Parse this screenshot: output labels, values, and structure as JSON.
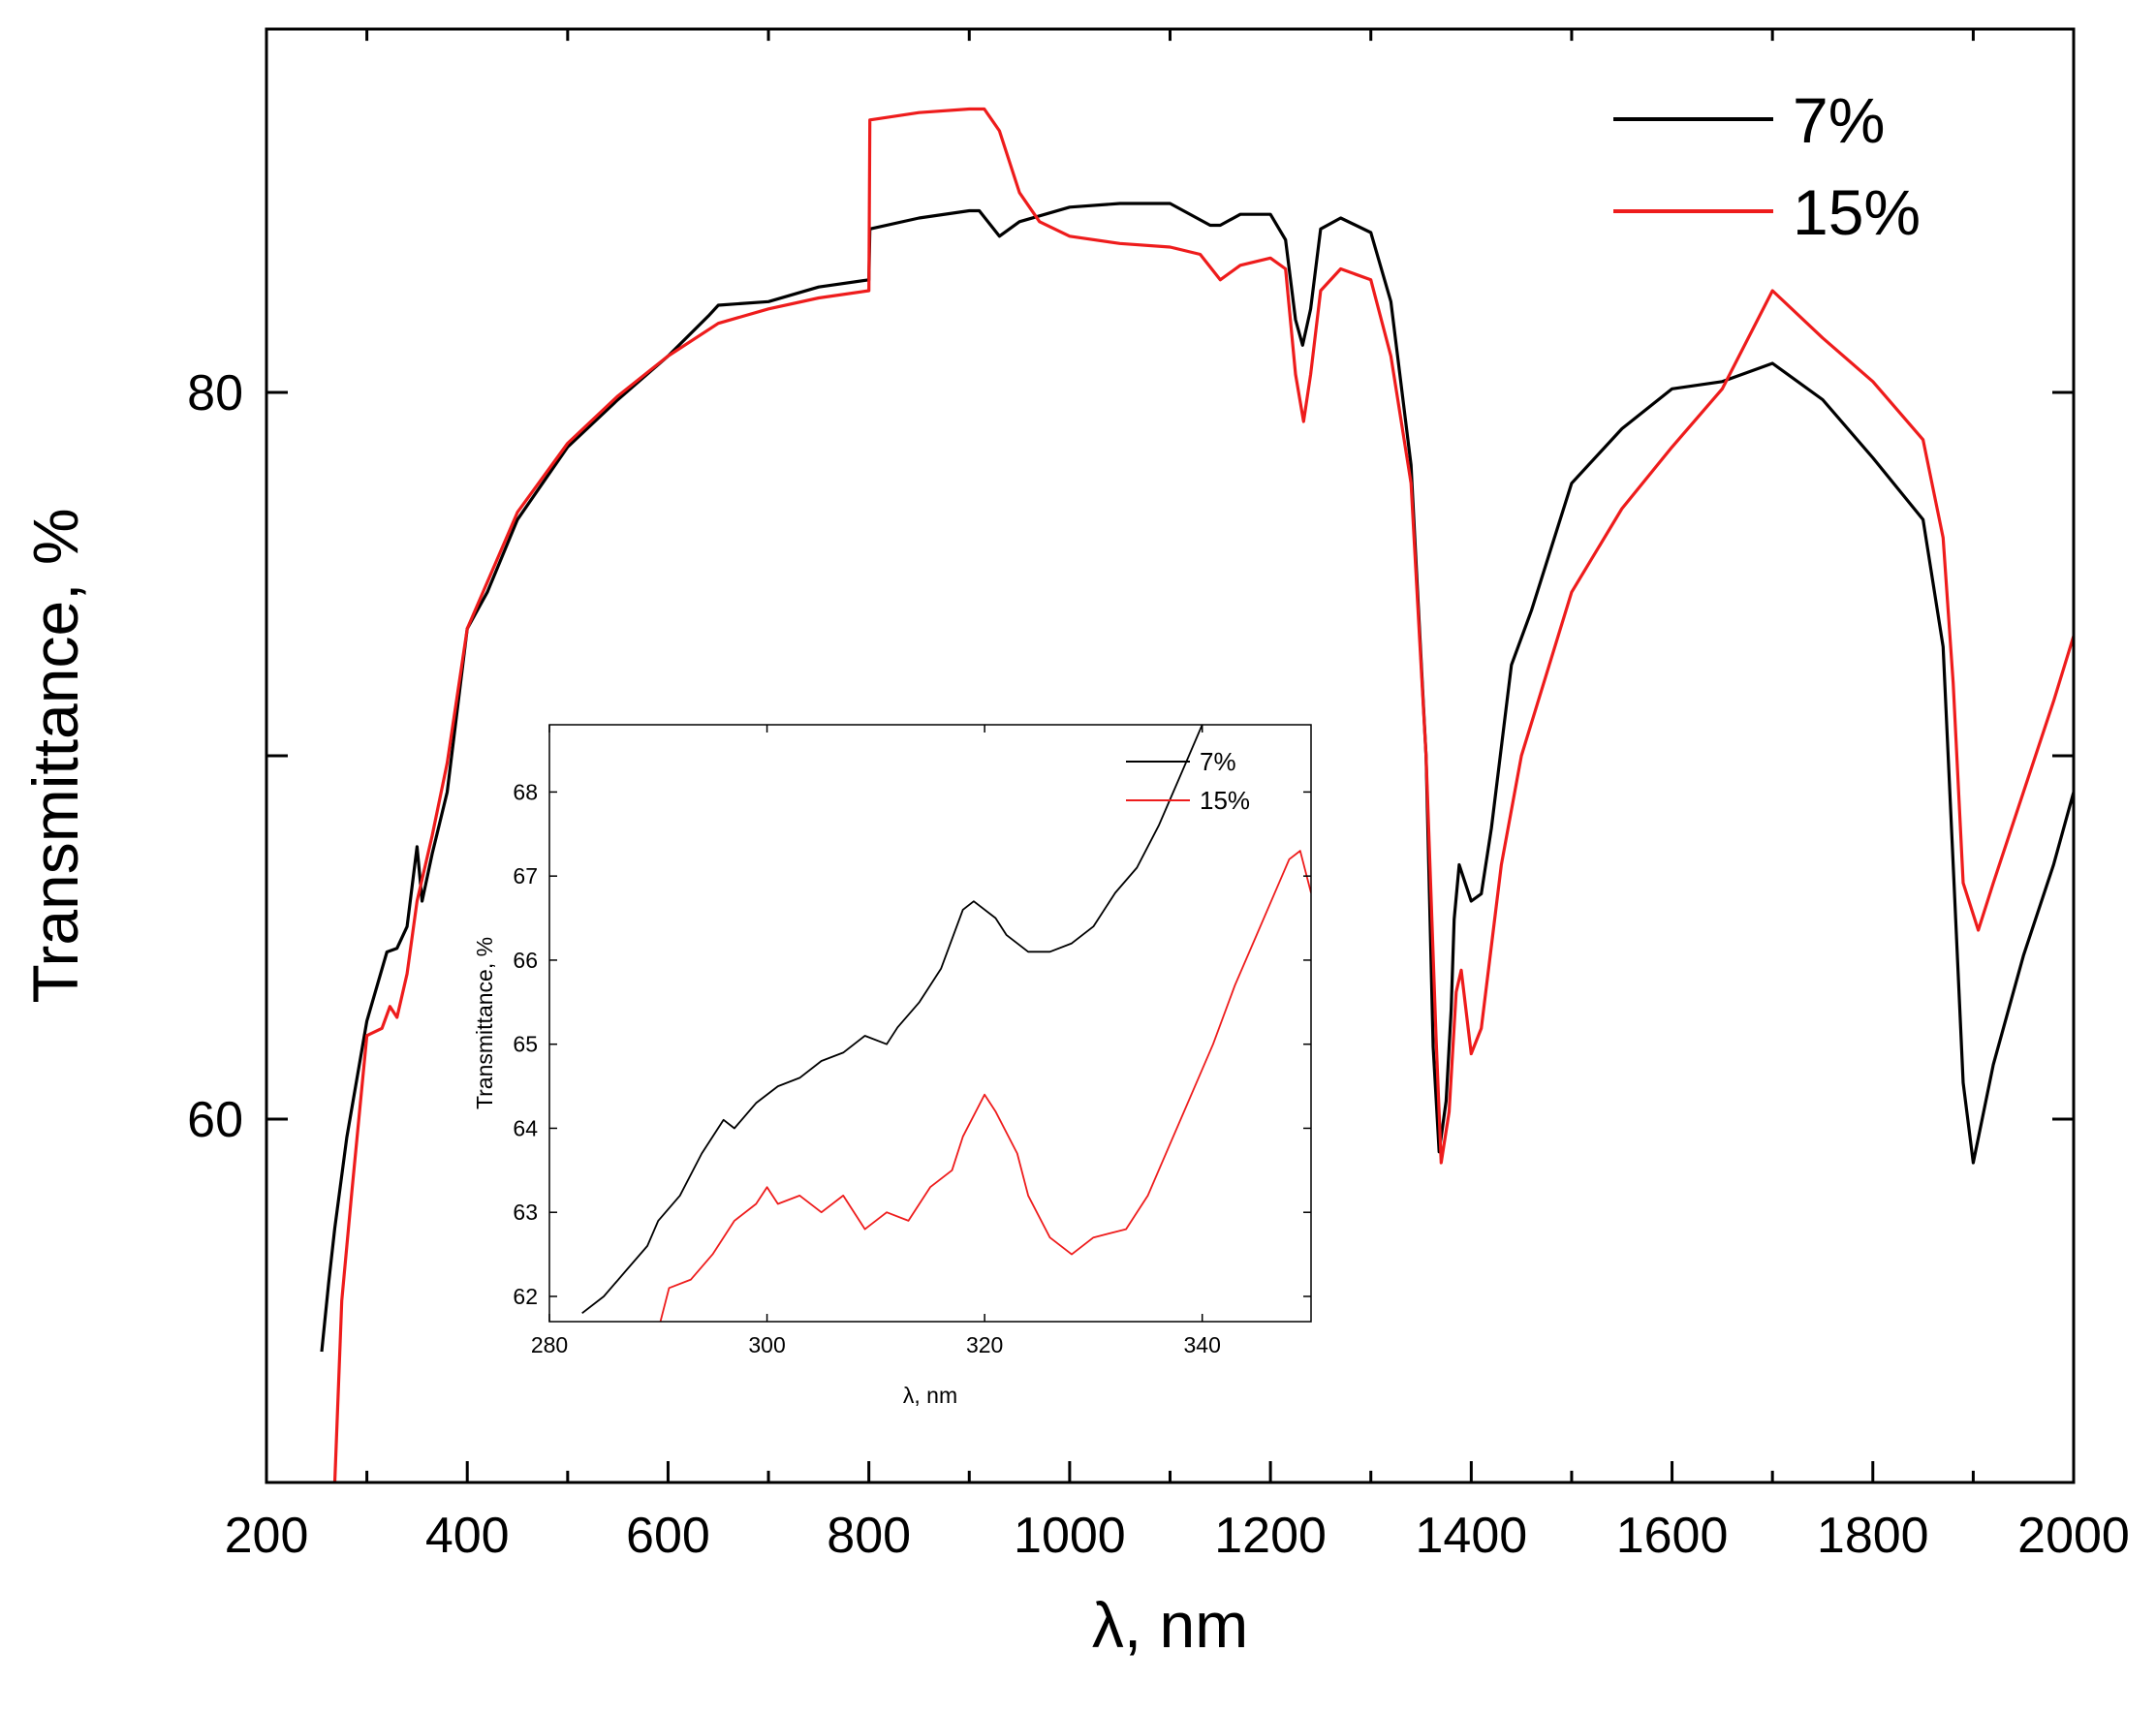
{
  "chart_data": [
    {
      "type": "line",
      "title": "",
      "xlabel": "λ, nm",
      "ylabel": "Transmittance, %",
      "xlim": [
        200,
        2000
      ],
      "ylim": [
        50,
        90
      ],
      "xticks": [
        200,
        400,
        600,
        800,
        1000,
        1200,
        1400,
        1600,
        1800,
        2000
      ],
      "yticks": [
        60,
        80
      ],
      "ytick_labels": [
        "60",
        "80"
      ],
      "legend_position": "top-right",
      "series": [
        {
          "name": "7%",
          "color": "#000000",
          "points": [
            [
              255,
              53.6
            ],
            [
              262,
              55.5
            ],
            [
              268,
              57
            ],
            [
              280,
              59.5
            ],
            [
              300,
              62.7
            ],
            [
              320,
              64.6
            ],
            [
              330,
              64.7
            ],
            [
              340,
              65.3
            ],
            [
              350,
              67.5
            ],
            [
              355,
              66
            ],
            [
              365,
              67.3
            ],
            [
              380,
              69
            ],
            [
              400,
              73.5
            ],
            [
              420,
              74.5
            ],
            [
              450,
              76.5
            ],
            [
              500,
              78.5
            ],
            [
              550,
              79.8
            ],
            [
              600,
              81
            ],
            [
              640,
              82.1
            ],
            [
              650,
              82.4
            ],
            [
              700,
              82.5
            ],
            [
              750,
              82.9
            ],
            [
              800,
              83.1
            ],
            [
              801,
              84.5
            ],
            [
              850,
              84.8
            ],
            [
              900,
              85
            ],
            [
              910,
              85
            ],
            [
              930,
              84.3
            ],
            [
              950,
              84.7
            ],
            [
              1000,
              85.1
            ],
            [
              1050,
              85.2
            ],
            [
              1100,
              85.2
            ],
            [
              1140,
              84.6
            ],
            [
              1150,
              84.6
            ],
            [
              1170,
              84.9
            ],
            [
              1200,
              84.9
            ],
            [
              1215,
              84.2
            ],
            [
              1225,
              82
            ],
            [
              1232,
              81.3
            ],
            [
              1240,
              82.3
            ],
            [
              1250,
              84.5
            ],
            [
              1270,
              84.8
            ],
            [
              1300,
              84.4
            ],
            [
              1320,
              82.5
            ],
            [
              1340,
              78
            ],
            [
              1355,
              70
            ],
            [
              1362,
              62
            ],
            [
              1368,
              59.1
            ],
            [
              1375,
              60.5
            ],
            [
              1380,
              63
            ],
            [
              1383,
              65.5
            ],
            [
              1388,
              67
            ],
            [
              1400,
              66
            ],
            [
              1410,
              66.2
            ],
            [
              1420,
              68
            ],
            [
              1440,
              72.5
            ],
            [
              1460,
              74
            ],
            [
              1500,
              77.5
            ],
            [
              1550,
              79
            ],
            [
              1600,
              80.1
            ],
            [
              1650,
              80.3
            ],
            [
              1700,
              80.8
            ],
            [
              1750,
              79.8
            ],
            [
              1800,
              78.2
            ],
            [
              1850,
              76.5
            ],
            [
              1870,
              73
            ],
            [
              1880,
              67
            ],
            [
              1890,
              61
            ],
            [
              1900,
              58.8
            ],
            [
              1920,
              61.5
            ],
            [
              1950,
              64.5
            ],
            [
              1980,
              67
            ],
            [
              2000,
              69
            ]
          ]
        },
        {
          "name": "15%",
          "color": "#ee1c1c",
          "points": [
            [
              268,
              50
            ],
            [
              275,
              55
            ],
            [
              285,
              58
            ],
            [
              300,
              62.3
            ],
            [
              315,
              62.5
            ],
            [
              323,
              63.1
            ],
            [
              330,
              62.8
            ],
            [
              340,
              64
            ],
            [
              350,
              66
            ],
            [
              365,
              67.8
            ],
            [
              380,
              69.8
            ],
            [
              400,
              73.5
            ],
            [
              450,
              76.7
            ],
            [
              500,
              78.6
            ],
            [
              550,
              79.9
            ],
            [
              600,
              81
            ],
            [
              650,
              81.9
            ],
            [
              700,
              82.3
            ],
            [
              750,
              82.6
            ],
            [
              800,
              82.8
            ],
            [
              801,
              87.5
            ],
            [
              850,
              87.7
            ],
            [
              900,
              87.8
            ],
            [
              915,
              87.8
            ],
            [
              930,
              87.2
            ],
            [
              950,
              85.5
            ],
            [
              970,
              84.7
            ],
            [
              1000,
              84.3
            ],
            [
              1050,
              84.1
            ],
            [
              1100,
              84
            ],
            [
              1130,
              83.8
            ],
            [
              1150,
              83.1
            ],
            [
              1170,
              83.5
            ],
            [
              1200,
              83.7
            ],
            [
              1215,
              83.4
            ],
            [
              1225,
              80.5
            ],
            [
              1233,
              79.2
            ],
            [
              1240,
              80.5
            ],
            [
              1250,
              82.8
            ],
            [
              1270,
              83.4
            ],
            [
              1300,
              83.1
            ],
            [
              1320,
              81
            ],
            [
              1340,
              77.5
            ],
            [
              1355,
              70
            ],
            [
              1365,
              62.2
            ],
            [
              1370,
              58.8
            ],
            [
              1378,
              60.2
            ],
            [
              1385,
              63.5
            ],
            [
              1390,
              64.1
            ],
            [
              1400,
              61.8
            ],
            [
              1410,
              62.5
            ],
            [
              1430,
              67
            ],
            [
              1450,
              70
            ],
            [
              1500,
              74.5
            ],
            [
              1550,
              76.8
            ],
            [
              1600,
              78.5
            ],
            [
              1650,
              80.1
            ],
            [
              1700,
              82.8
            ],
            [
              1750,
              81.5
            ],
            [
              1800,
              80.3
            ],
            [
              1850,
              78.7
            ],
            [
              1870,
              76
            ],
            [
              1880,
              72
            ],
            [
              1890,
              66.5
            ],
            [
              1905,
              65.2
            ],
            [
              1920,
              66.5
            ],
            [
              1950,
              69
            ],
            [
              1980,
              71.5
            ],
            [
              2000,
              73.3
            ]
          ]
        }
      ]
    },
    {
      "type": "line",
      "title": "",
      "xlabel": "λ, nm",
      "ylabel": "Transmittance, %",
      "xlim": [
        280,
        350
      ],
      "ylim": [
        61.7,
        68.8
      ],
      "xticks": [
        280,
        300,
        320,
        340
      ],
      "yticks": [
        62,
        63,
        64,
        65,
        66,
        67,
        68
      ],
      "ytick_labels": [
        "62",
        "63",
        "64",
        "65",
        "66",
        "67",
        "68"
      ],
      "legend_position": "top-right",
      "series": [
        {
          "name": "7%",
          "color": "#000000",
          "points": [
            [
              283,
              61.8
            ],
            [
              285,
              62
            ],
            [
              287,
              62.3
            ],
            [
              289,
              62.6
            ],
            [
              290,
              62.9
            ],
            [
              292,
              63.2
            ],
            [
              294,
              63.7
            ],
            [
              296,
              64.1
            ],
            [
              297,
              64
            ],
            [
              299,
              64.3
            ],
            [
              301,
              64.5
            ],
            [
              303,
              64.6
            ],
            [
              305,
              64.8
            ],
            [
              307,
              64.9
            ],
            [
              309,
              65.1
            ],
            [
              311,
              65
            ],
            [
              312,
              65.2
            ],
            [
              314,
              65.5
            ],
            [
              316,
              65.9
            ],
            [
              318,
              66.6
            ],
            [
              319,
              66.7
            ],
            [
              321,
              66.5
            ],
            [
              322,
              66.3
            ],
            [
              324,
              66.1
            ],
            [
              326,
              66.1
            ],
            [
              328,
              66.2
            ],
            [
              330,
              66.4
            ],
            [
              332,
              66.8
            ],
            [
              334,
              67.1
            ],
            [
              336,
              67.6
            ],
            [
              338,
              68.2
            ],
            [
              340,
              68.8
            ]
          ]
        },
        {
          "name": "15%",
          "color": "#ee1c1c",
          "points": [
            [
              290,
              61.6
            ],
            [
              291,
              62.1
            ],
            [
              293,
              62.2
            ],
            [
              295,
              62.5
            ],
            [
              297,
              62.9
            ],
            [
              299,
              63.1
            ],
            [
              300,
              63.3
            ],
            [
              301,
              63.1
            ],
            [
              303,
              63.2
            ],
            [
              305,
              63
            ],
            [
              307,
              63.2
            ],
            [
              309,
              62.8
            ],
            [
              311,
              63
            ],
            [
              313,
              62.9
            ],
            [
              315,
              63.3
            ],
            [
              317,
              63.5
            ],
            [
              318,
              63.9
            ],
            [
              320,
              64.4
            ],
            [
              321,
              64.2
            ],
            [
              323,
              63.7
            ],
            [
              324,
              63.2
            ],
            [
              326,
              62.7
            ],
            [
              328,
              62.5
            ],
            [
              330,
              62.7
            ],
            [
              333,
              62.8
            ],
            [
              335,
              63.2
            ],
            [
              337,
              63.8
            ],
            [
              339,
              64.4
            ],
            [
              341,
              65
            ],
            [
              343,
              65.7
            ],
            [
              345,
              66.3
            ],
            [
              347,
              66.9
            ],
            [
              348,
              67.2
            ],
            [
              349,
              67.3
            ],
            [
              350,
              66.8
            ]
          ]
        }
      ]
    }
  ]
}
